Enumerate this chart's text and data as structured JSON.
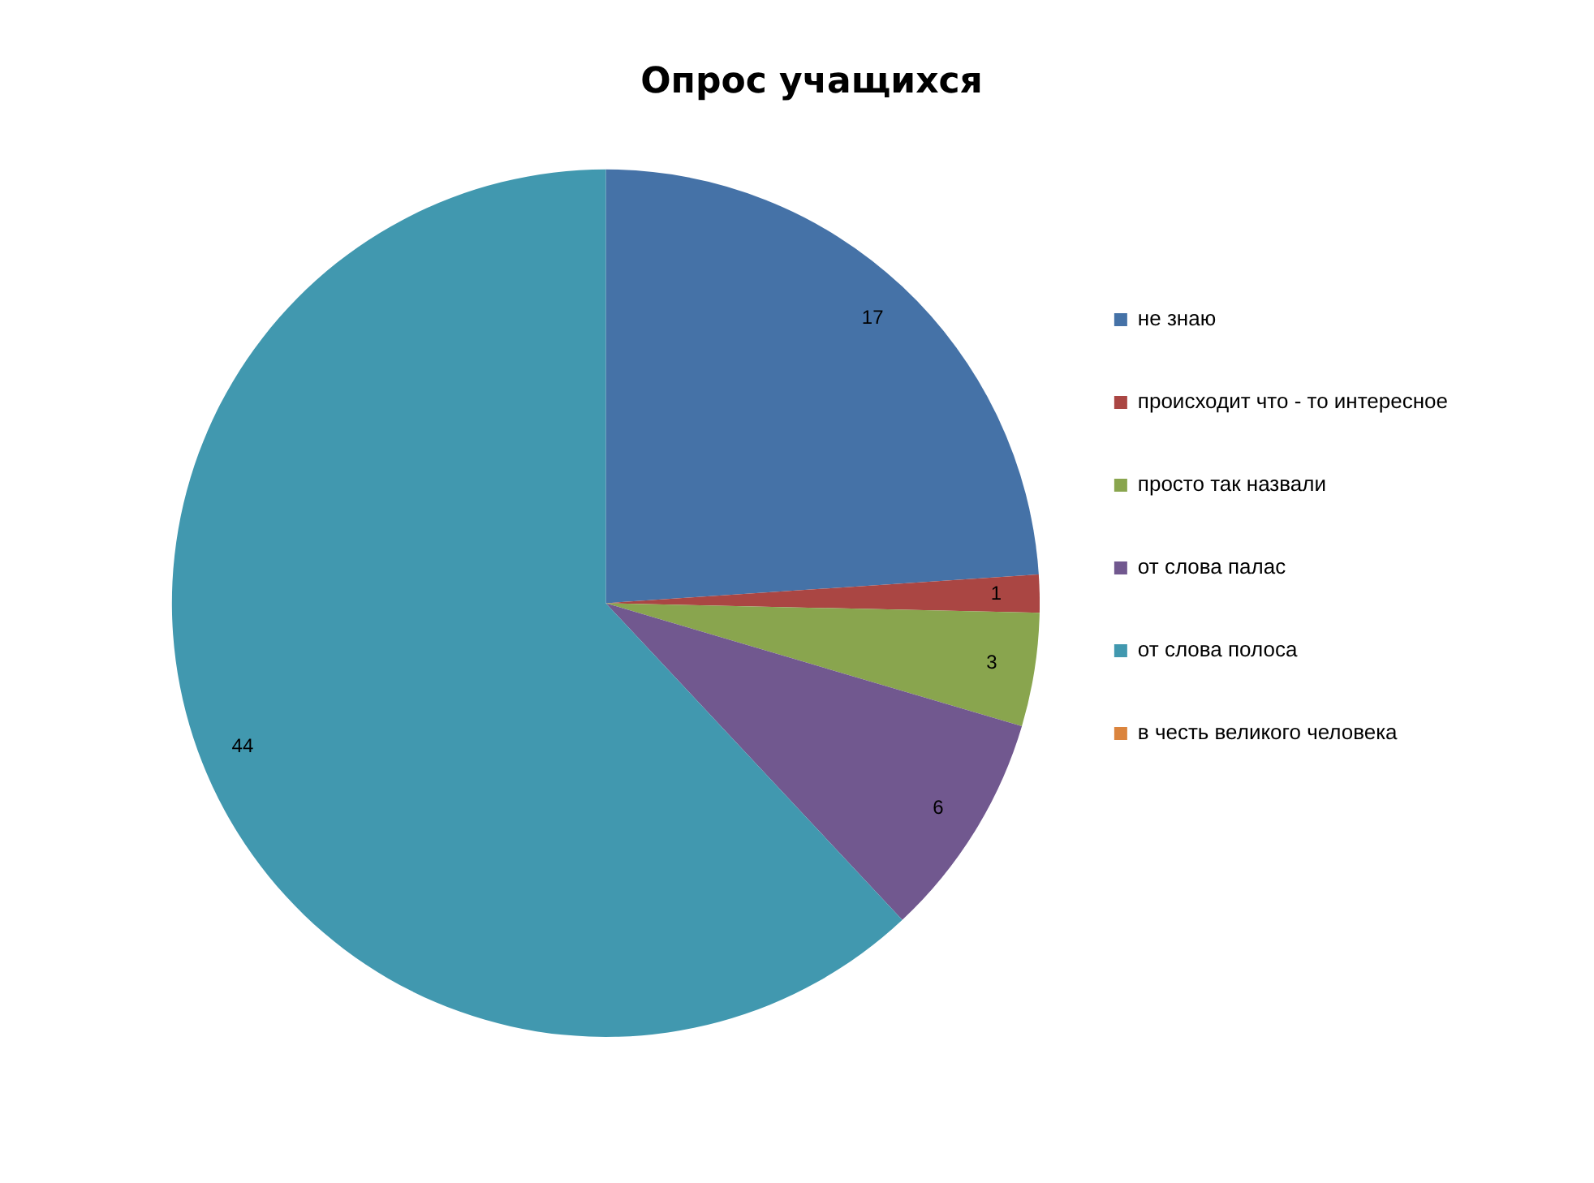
{
  "chart_data": {
    "type": "pie",
    "title": "Опрос учащихся",
    "categories": [
      "не знаю",
      "происходит что - то интересное",
      "просто так назвали",
      "от слова палас",
      "от слова полоса",
      "в честь великого человека"
    ],
    "values": [
      17,
      1,
      3,
      6,
      44,
      0
    ],
    "colors": [
      "#4572a7",
      "#aa4643",
      "#89a54e",
      "#71588f",
      "#4198af",
      "#db843d"
    ],
    "value_labels": [
      "17",
      "1",
      "3",
      "6",
      "44",
      null
    ],
    "legend": "right"
  }
}
